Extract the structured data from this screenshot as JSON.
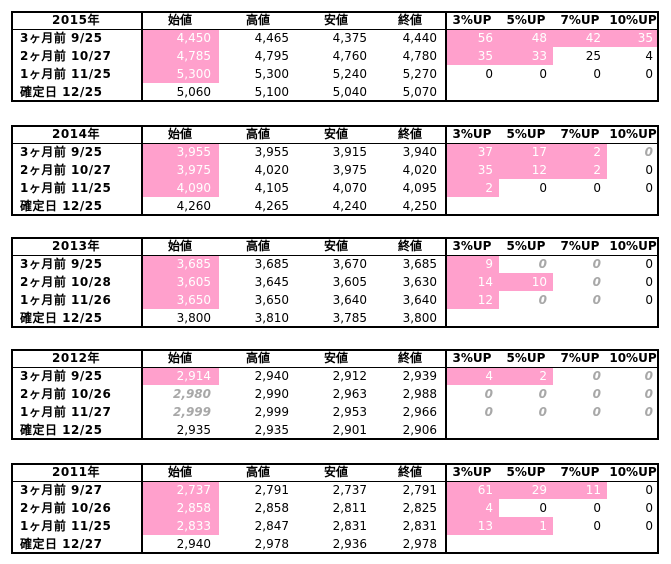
{
  "columns": [
    "始値",
    "高値",
    "安値",
    "終値",
    "3%UP",
    "5%UP",
    "7%UP",
    "10%UP"
  ],
  "colors": {
    "highlight": "#ffa0cc",
    "grayed_text": "#a8a8a8",
    "border": "#000000"
  },
  "blocks": [
    {
      "title": "2015年",
      "rows": [
        {
          "label": "3ヶ月前  9/25",
          "open": "4,450",
          "high": "4,465",
          "low": "4,375",
          "close": "4,440",
          "up3": "56",
          "up5": "48",
          "up7": "42",
          "up10": "35"
        },
        {
          "label": "2ヶ月前  10/27",
          "open": "4,785",
          "high": "4,795",
          "low": "4,760",
          "close": "4,780",
          "up3": "35",
          "up5": "33",
          "up7": "25",
          "up10": "4"
        },
        {
          "label": "1ヶ月前  11/25",
          "open": "5,300",
          "high": "5,300",
          "low": "5,240",
          "close": "5,270",
          "up3": "0",
          "up5": "0",
          "up7": "0",
          "up10": "0"
        },
        {
          "label": "確定日  12/25",
          "open": "5,060",
          "high": "5,100",
          "low": "5,040",
          "close": "5,070",
          "up3": "",
          "up5": "",
          "up7": "",
          "up10": ""
        }
      ]
    },
    {
      "title": "2014年",
      "rows": [
        {
          "label": "3ヶ月前  9/25",
          "open": "3,955",
          "high": "3,955",
          "low": "3,915",
          "close": "3,940",
          "up3": "37",
          "up5": "17",
          "up7": "2",
          "up10": "0"
        },
        {
          "label": "2ヶ月前  10/27",
          "open": "3,975",
          "high": "4,020",
          "low": "3,975",
          "close": "4,020",
          "up3": "35",
          "up5": "12",
          "up7": "2",
          "up10": "0"
        },
        {
          "label": "1ヶ月前  11/25",
          "open": "4,090",
          "high": "4,105",
          "low": "4,070",
          "close": "4,095",
          "up3": "2",
          "up5": "0",
          "up7": "0",
          "up10": "0"
        },
        {
          "label": "確定日  12/25",
          "open": "4,260",
          "high": "4,265",
          "low": "4,240",
          "close": "4,250",
          "up3": "",
          "up5": "",
          "up7": "",
          "up10": ""
        }
      ]
    },
    {
      "title": "2013年",
      "rows": [
        {
          "label": "3ヶ月前  9/25",
          "open": "3,685",
          "high": "3,685",
          "low": "3,670",
          "close": "3,685",
          "up3": "9",
          "up5": "0",
          "up7": "0",
          "up10": "0"
        },
        {
          "label": "2ヶ月前  10/28",
          "open": "3,605",
          "high": "3,645",
          "low": "3,605",
          "close": "3,630",
          "up3": "14",
          "up5": "10",
          "up7": "0",
          "up10": "0"
        },
        {
          "label": "1ヶ月前  11/26",
          "open": "3,650",
          "high": "3,650",
          "low": "3,640",
          "close": "3,640",
          "up3": "12",
          "up5": "0",
          "up7": "0",
          "up10": "0"
        },
        {
          "label": "確定日  12/25",
          "open": "3,800",
          "high": "3,810",
          "low": "3,785",
          "close": "3,800",
          "up3": "",
          "up5": "",
          "up7": "",
          "up10": ""
        }
      ]
    },
    {
      "title": "2012年",
      "rows": [
        {
          "label": "3ヶ月前  9/25",
          "open": "2,914",
          "high": "2,940",
          "low": "2,912",
          "close": "2,939",
          "up3": "4",
          "up5": "2",
          "up7": "0",
          "up10": "0"
        },
        {
          "label": "2ヶ月前  10/26",
          "open": "2,980",
          "high": "2,990",
          "low": "2,963",
          "close": "2,988",
          "up3": "0",
          "up5": "0",
          "up7": "0",
          "up10": "0"
        },
        {
          "label": "1ヶ月前  11/27",
          "open": "2,999",
          "high": "2,999",
          "low": "2,953",
          "close": "2,966",
          "up3": "0",
          "up5": "0",
          "up7": "0",
          "up10": "0"
        },
        {
          "label": "確定日  12/25",
          "open": "2,935",
          "high": "2,935",
          "low": "2,901",
          "close": "2,906",
          "up3": "",
          "up5": "",
          "up7": "",
          "up10": ""
        }
      ]
    },
    {
      "title": "2011年",
      "rows": [
        {
          "label": "3ヶ月前  9/27",
          "open": "2,737",
          "high": "2,791",
          "low": "2,737",
          "close": "2,791",
          "up3": "61",
          "up5": "29",
          "up7": "11",
          "up10": "0"
        },
        {
          "label": "2ヶ月前  10/26",
          "open": "2,858",
          "high": "2,858",
          "low": "2,811",
          "close": "2,825",
          "up3": "4",
          "up5": "0",
          "up7": "0",
          "up10": "0"
        },
        {
          "label": "1ヶ月前  11/25",
          "open": "2,833",
          "high": "2,847",
          "low": "2,831",
          "close": "2,831",
          "up3": "13",
          "up5": "1",
          "up7": "0",
          "up10": "0"
        },
        {
          "label": "確定日  12/27",
          "open": "2,940",
          "high": "2,978",
          "low": "2,936",
          "close": "2,978",
          "up3": "",
          "up5": "",
          "up7": "",
          "up10": ""
        }
      ]
    }
  ]
}
